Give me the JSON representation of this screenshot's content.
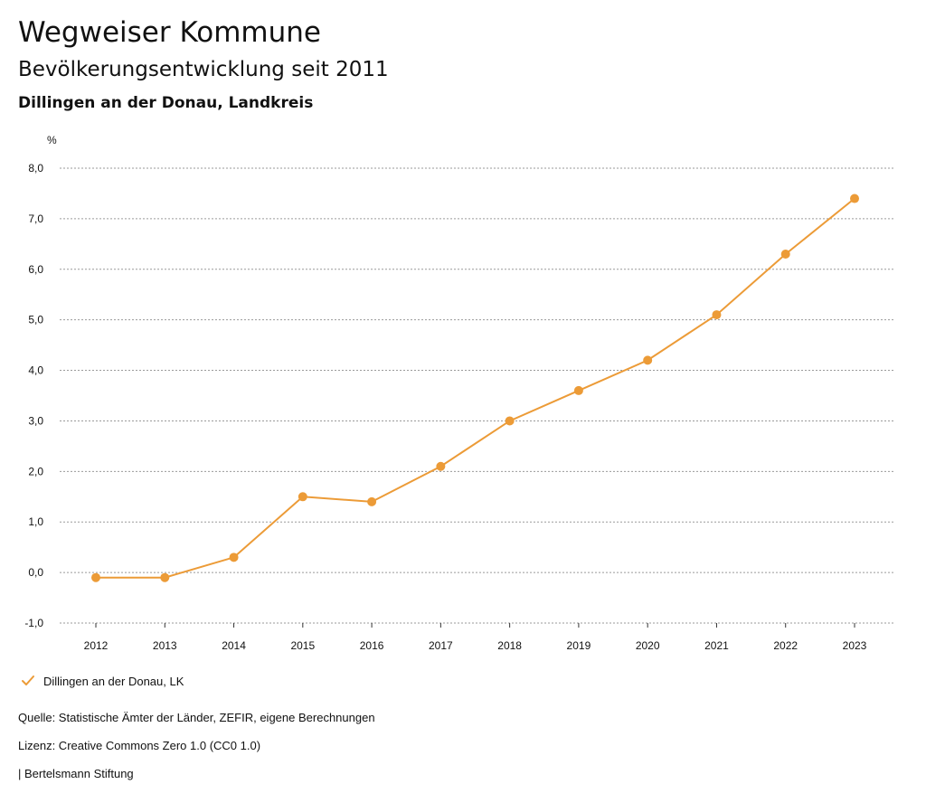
{
  "header": {
    "title": "Wegweiser Kommune",
    "subtitle": "Bevölkerungsentwicklung seit 2011",
    "region": "Dillingen an der Donau, Landkreis"
  },
  "chart_data": {
    "type": "line",
    "title": "Bevölkerungsentwicklung seit 2011",
    "xlabel": "",
    "ylabel": "%",
    "ylim": [
      -1.0,
      8.0
    ],
    "yticks": [
      "-1,0",
      "0,0",
      "1,0",
      "2,0",
      "3,0",
      "4,0",
      "5,0",
      "6,0",
      "7,0",
      "8,0"
    ],
    "ytick_values": [
      -1,
      0,
      1,
      2,
      3,
      4,
      5,
      6,
      7,
      8
    ],
    "categories": [
      "2012",
      "2013",
      "2014",
      "2015",
      "2016",
      "2017",
      "2018",
      "2019",
      "2020",
      "2021",
      "2022",
      "2023"
    ],
    "series": [
      {
        "name": "Dillingen an der Donau, LK",
        "color": "#ec9b37",
        "values": [
          -0.1,
          -0.1,
          0.3,
          1.5,
          1.4,
          2.1,
          3.0,
          3.6,
          4.2,
          5.1,
          6.3,
          7.4
        ]
      }
    ],
    "grid": true,
    "legend": "bottom-left"
  },
  "legend": {
    "label": "Dillingen an der Donau, LK",
    "icon": "check-icon"
  },
  "footer": {
    "source": "Quelle: Statistische Ämter der Länder, ZEFIR, eigene Berechnungen",
    "license": "Lizenz: Creative Commons Zero 1.0 (CC0 1.0)",
    "credit": "| Bertelsmann Stiftung"
  }
}
